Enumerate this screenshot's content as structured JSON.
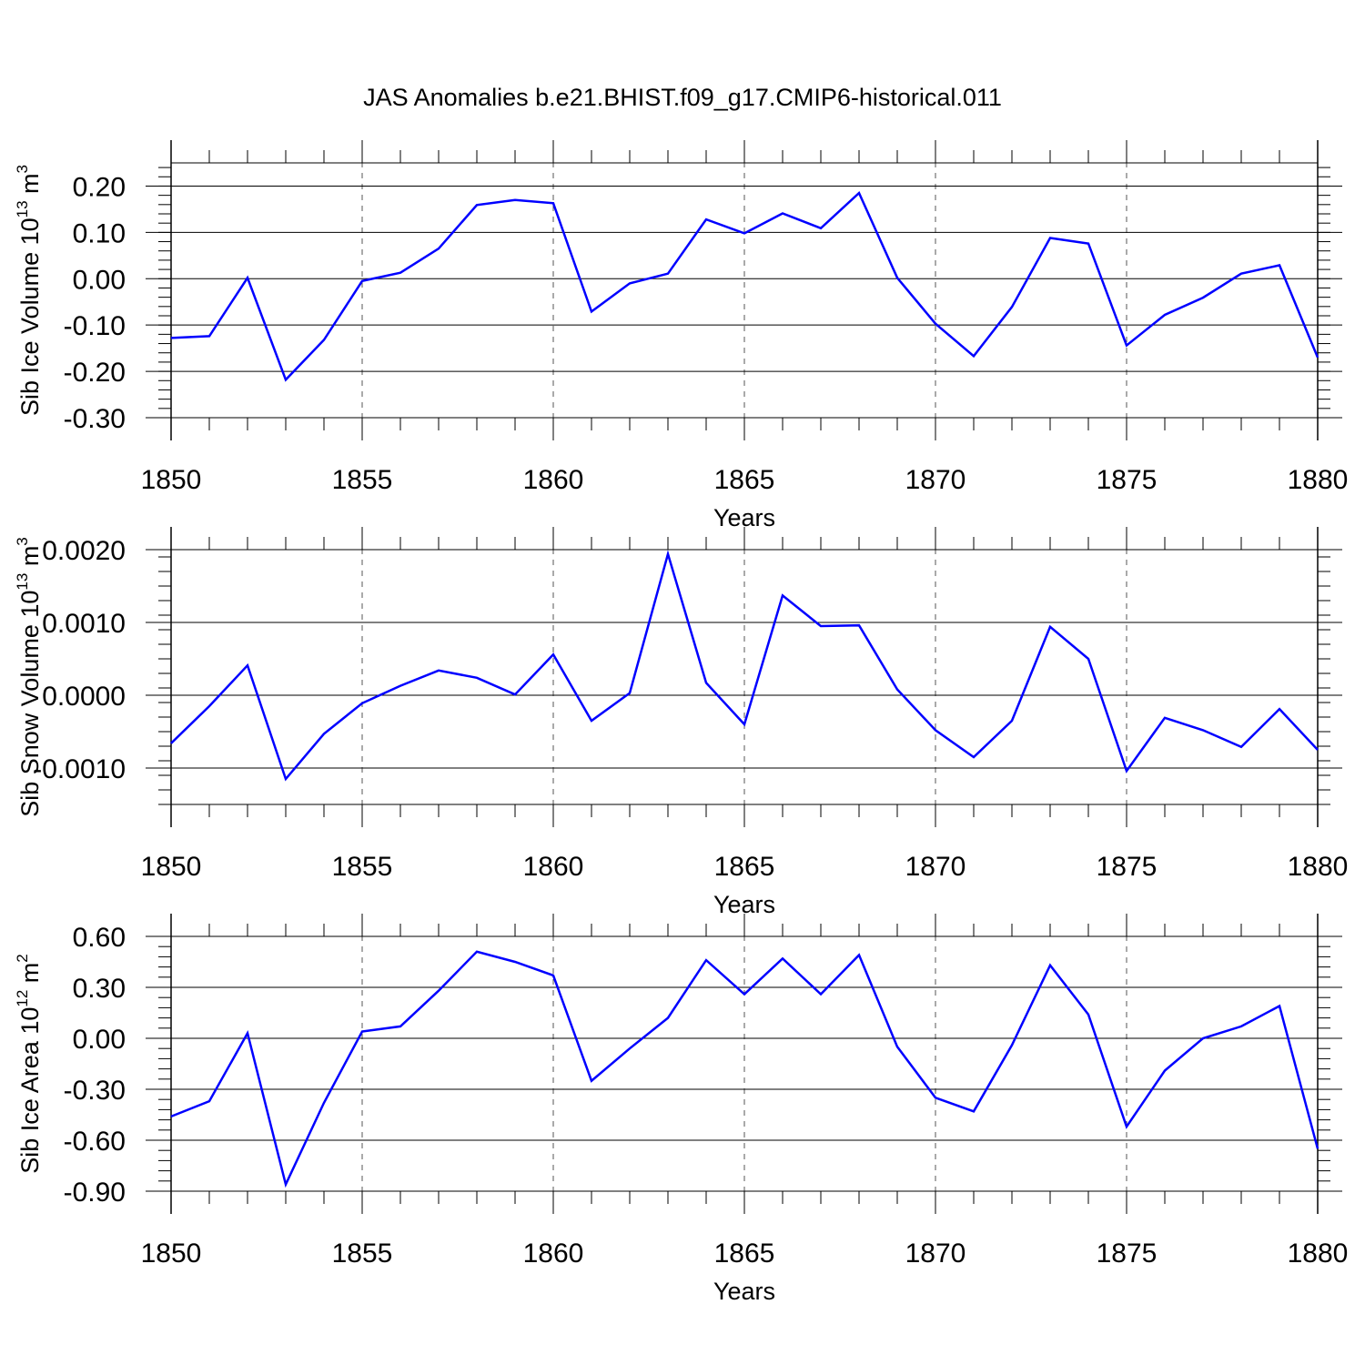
{
  "title": "JAS Anomalies b.e21.BHIST.f09_g17.CMIP6-historical.011",
  "chart_data": [
    {
      "type": "line",
      "title": "",
      "xlabel": "Years",
      "ylabel": {
        "text": "Sib Ice Volume 10",
        "exp": "13",
        "unit": " m",
        "unit_exp": "3"
      },
      "xlim": [
        1850,
        1880
      ],
      "ylim": [
        -0.3,
        0.25
      ],
      "yticks": [
        0.2,
        0.1,
        0.0,
        -0.1,
        -0.2,
        -0.3
      ],
      "ytick_labels": [
        "0.20",
        "0.10",
        "0.00",
        "-0.10",
        "-0.20",
        "-0.30"
      ],
      "xticks": [
        1850,
        1855,
        1860,
        1865,
        1870,
        1875,
        1880
      ],
      "xtick_labels": [
        "1850",
        "1855",
        "1860",
        "1865",
        "1870",
        "1875",
        "1880"
      ],
      "line_color": "#0000ff",
      "x": [
        1850,
        1851,
        1852,
        1853,
        1854,
        1855,
        1856,
        1857,
        1858,
        1859,
        1860,
        1861,
        1862,
        1863,
        1864,
        1865,
        1866,
        1867,
        1868,
        1869,
        1870,
        1871,
        1872,
        1873,
        1874,
        1875,
        1876,
        1877,
        1878,
        1879,
        1880
      ],
      "values": [
        -0.128,
        -0.124,
        0.002,
        -0.218,
        -0.132,
        -0.005,
        0.013,
        0.065,
        0.159,
        0.17,
        0.163,
        -0.071,
        -0.01,
        0.011,
        0.128,
        0.098,
        0.141,
        0.109,
        0.185,
        0.002,
        -0.097,
        -0.167,
        -0.061,
        0.088,
        0.076,
        -0.144,
        -0.078,
        -0.041,
        0.011,
        0.029,
        -0.17
      ]
    },
    {
      "type": "line",
      "title": "",
      "xlabel": "Years",
      "ylabel": {
        "text": "Sib Snow Volume 10",
        "exp": "13",
        "unit": " m",
        "unit_exp": "3"
      },
      "xlim": [
        1850,
        1880
      ],
      "ylim": [
        -0.0015,
        0.002
      ],
      "yticks": [
        0.002,
        0.001,
        0.0,
        -0.001
      ],
      "ytick_labels": [
        "0.0020",
        "0.0010",
        "0.0000",
        "-0.0010"
      ],
      "xticks": [
        1850,
        1855,
        1860,
        1865,
        1870,
        1875,
        1880
      ],
      "xtick_labels": [
        "1850",
        "1855",
        "1860",
        "1865",
        "1870",
        "1875",
        "1880"
      ],
      "line_color": "#0000ff",
      "x": [
        1850,
        1851,
        1852,
        1853,
        1854,
        1855,
        1856,
        1857,
        1858,
        1859,
        1860,
        1861,
        1862,
        1863,
        1864,
        1865,
        1866,
        1867,
        1868,
        1869,
        1870,
        1871,
        1872,
        1873,
        1874,
        1875,
        1876,
        1877,
        1878,
        1879,
        1880
      ],
      "values": [
        -0.00066,
        -0.00015,
        0.00041,
        -0.00115,
        -0.00053,
        -0.00011,
        0.00013,
        0.00034,
        0.00024,
        1e-05,
        0.00056,
        -0.00035,
        3e-05,
        0.00194,
        0.00017,
        -0.0004,
        0.00137,
        0.00095,
        0.00096,
        8e-05,
        -0.00048,
        -0.00085,
        -0.00035,
        0.00094,
        0.0005,
        -0.00104,
        -0.00031,
        -0.00048,
        -0.00071,
        -0.00019,
        -0.00075
      ]
    },
    {
      "type": "line",
      "title": "",
      "xlabel": "Years",
      "ylabel": {
        "text": "Sib Ice Area 10",
        "exp": "12",
        "unit": " m",
        "unit_exp": "2"
      },
      "xlim": [
        1850,
        1880
      ],
      "ylim": [
        -0.9,
        0.6
      ],
      "yticks": [
        0.6,
        0.3,
        0.0,
        -0.3,
        -0.6,
        -0.9
      ],
      "ytick_labels": [
        "0.60",
        "0.30",
        "0.00",
        "-0.30",
        "-0.60",
        "-0.90"
      ],
      "xticks": [
        1850,
        1855,
        1860,
        1865,
        1870,
        1875,
        1880
      ],
      "xtick_labels": [
        "1850",
        "1855",
        "1860",
        "1865",
        "1870",
        "1875",
        "1880"
      ],
      "line_color": "#0000ff",
      "x": [
        1850,
        1851,
        1852,
        1853,
        1854,
        1855,
        1856,
        1857,
        1858,
        1859,
        1860,
        1861,
        1862,
        1863,
        1864,
        1865,
        1866,
        1867,
        1868,
        1869,
        1870,
        1871,
        1872,
        1873,
        1874,
        1875,
        1876,
        1877,
        1878,
        1879,
        1880
      ],
      "values": [
        -0.46,
        -0.37,
        0.03,
        -0.86,
        -0.38,
        0.04,
        0.07,
        0.28,
        0.51,
        0.45,
        0.37,
        -0.25,
        -0.06,
        0.12,
        0.46,
        0.26,
        0.47,
        0.26,
        0.49,
        -0.05,
        -0.35,
        -0.43,
        -0.04,
        0.43,
        0.14,
        -0.52,
        -0.19,
        0.0,
        0.07,
        0.19,
        -0.65
      ]
    }
  ]
}
